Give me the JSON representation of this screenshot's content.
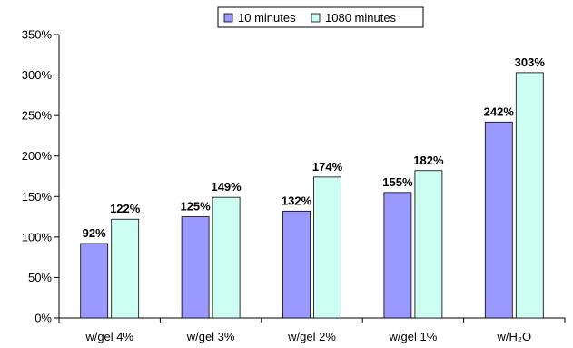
{
  "chart_data": {
    "type": "bar",
    "categories": [
      "w/gel 4%",
      "w/gel 3%",
      "w/gel 2%",
      "w/gel 1%",
      "w/H₂O"
    ],
    "series": [
      {
        "name": "10 minutes",
        "values": [
          92,
          125,
          132,
          155,
          242
        ],
        "labels": [
          "92%",
          "125%",
          "132%",
          "155%",
          "242%"
        ],
        "color": "#9999ff"
      },
      {
        "name": "1080 minutes",
        "values": [
          122,
          149,
          174,
          182,
          303
        ],
        "labels": [
          "122%",
          "149%",
          "174%",
          "182%",
          "303%"
        ],
        "color": "#ccfff2"
      }
    ],
    "yticks": [
      0,
      50,
      100,
      150,
      200,
      250,
      300,
      350
    ],
    "ytick_labels": [
      "0%",
      "50%",
      "100%",
      "150%",
      "200%",
      "250%",
      "300%",
      "350%"
    ],
    "ylim": [
      0,
      350
    ],
    "title": "",
    "xlabel": "",
    "ylabel": "",
    "grid": false,
    "legend_position": "top"
  }
}
